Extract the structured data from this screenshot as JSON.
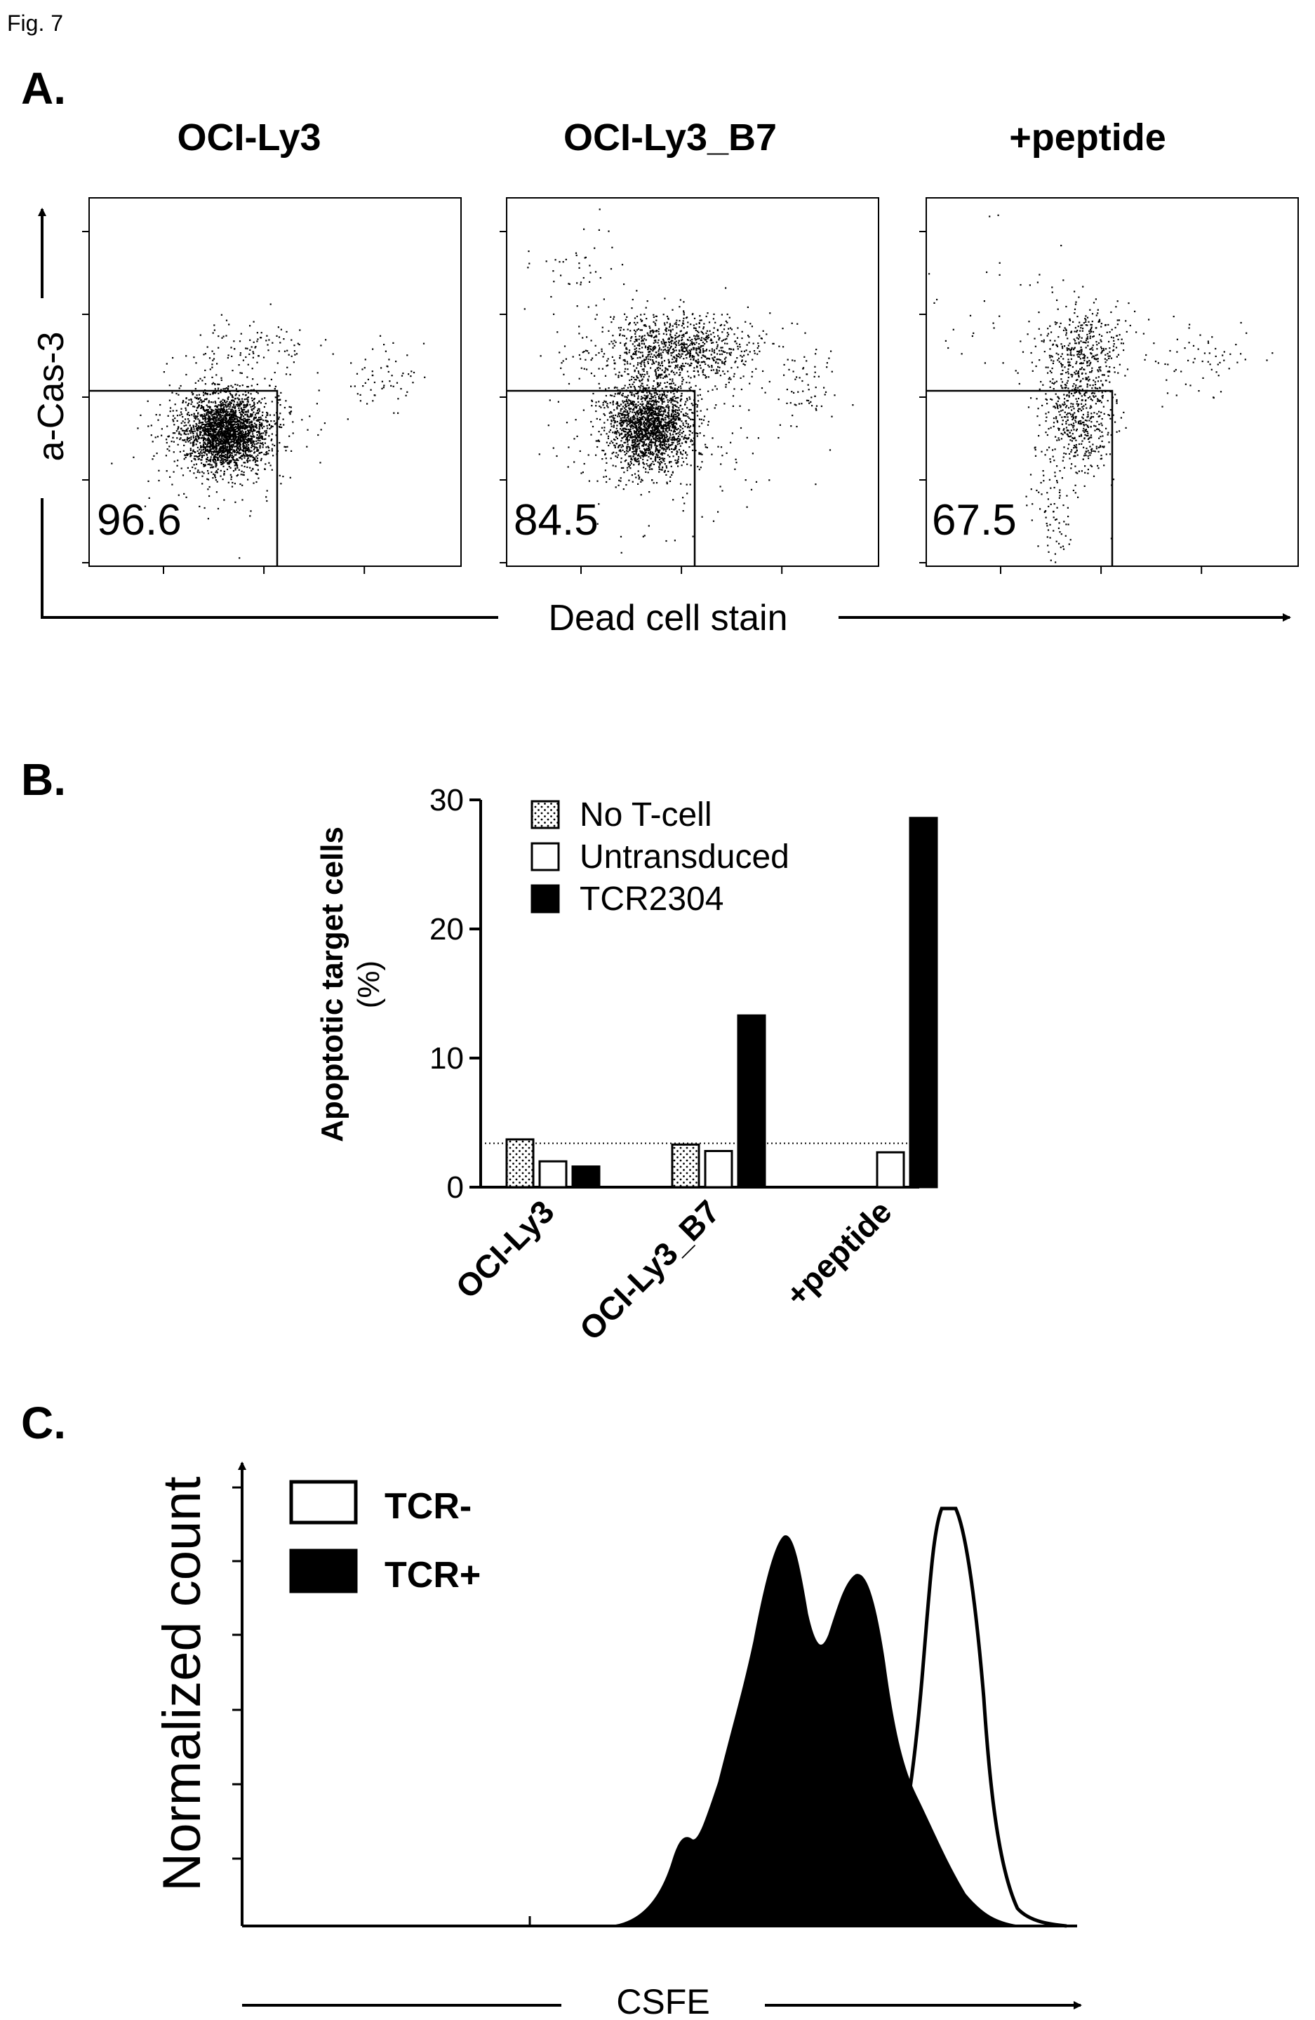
{
  "figure_label": "Fig. 7",
  "panels": {
    "a": {
      "letter": "A."
    },
    "b": {
      "letter": "B."
    },
    "c": {
      "letter": "C."
    }
  },
  "chart_data": [
    {
      "type": "scatter",
      "panel": "A",
      "plots": [
        {
          "title": "OCI-Ly3",
          "gate_value": "96.6"
        },
        {
          "title": "OCI-Ly3_B7",
          "gate_value": "84.5"
        },
        {
          "title": "+peptide",
          "gate_value": "67.5"
        }
      ],
      "ylabel": "a-Cas-3",
      "xlabel": "Dead cell stain"
    },
    {
      "type": "bar",
      "panel": "B",
      "categories": [
        "OCI-Ly3",
        "OCI-Ly3_B7",
        "+peptide"
      ],
      "series": [
        {
          "name": "No T-cell",
          "values": [
            3.7,
            3.3,
            null
          ],
          "color": "#ffffff",
          "pattern": "dotted"
        },
        {
          "name": "Untransduced",
          "values": [
            2.0,
            2.8,
            2.7
          ],
          "color": "#ffffff"
        },
        {
          "name": "TCR2304",
          "values": [
            1.6,
            13.3,
            28.6
          ],
          "color": "#000000"
        }
      ],
      "ylabel_line1": "Apoptotic target cells",
      "ylabel_line2": "(%)",
      "ylim": [
        0,
        30
      ],
      "yticks": [
        "0",
        "10",
        "20",
        "30"
      ],
      "baseline_value": 3.4
    },
    {
      "type": "area",
      "panel": "C",
      "legend": [
        {
          "name": "TCR-",
          "fill": "#ffffff"
        },
        {
          "name": "TCR+",
          "fill": "#000000"
        }
      ],
      "ylabel": "Normalized count",
      "xlabel": "CSFE"
    }
  ]
}
